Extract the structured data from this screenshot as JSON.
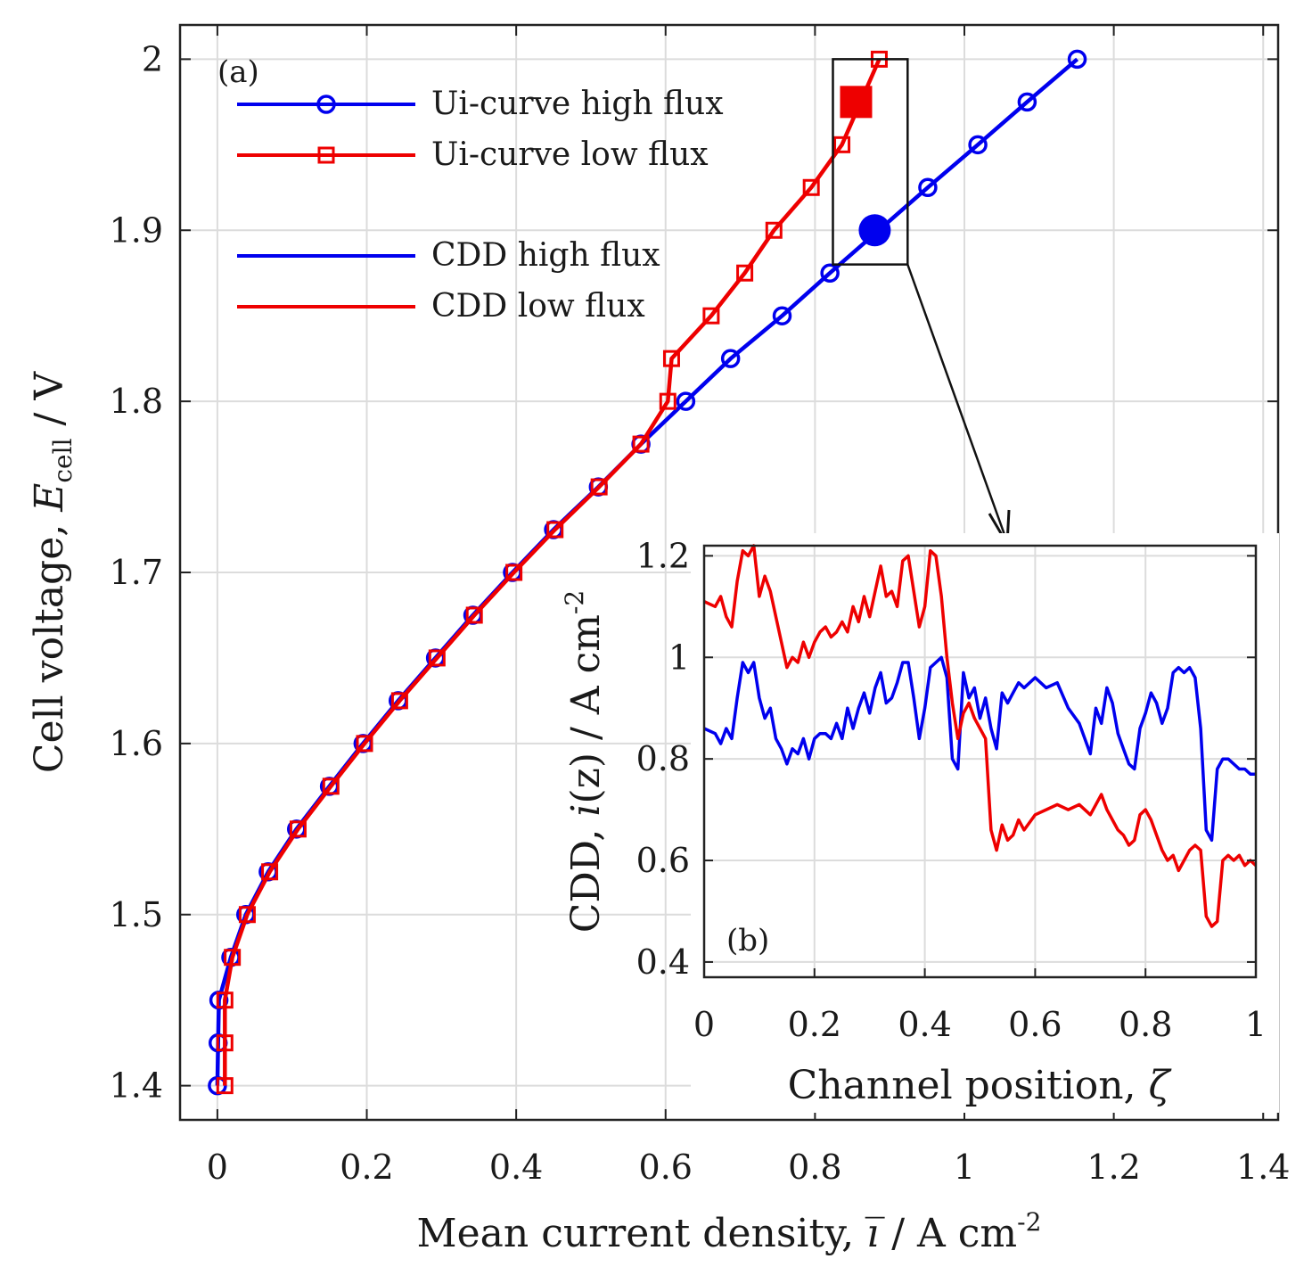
{
  "chart_data": [
    {
      "panel": "(a)",
      "type": "line",
      "xlabel_text": "Mean current density, ",
      "xlabel_symbol": "i̅",
      "xlabel_unit": " / A cm",
      "xlabel_sup": "-2",
      "ylabel_text": "Cell voltage, ",
      "ylabel_symbol": "E",
      "ylabel_sub": "cell",
      "ylabel_unit": " / V",
      "xlim": [
        -0.05,
        1.42
      ],
      "ylim": [
        1.38,
        2.02
      ],
      "xticks": [
        0,
        0.2,
        0.4,
        0.6,
        0.8,
        1,
        1.2,
        1.4
      ],
      "xtick_labels": [
        "0",
        "0.2",
        "0.4",
        "0.6",
        "0.8",
        "1",
        "1.2",
        "1.4"
      ],
      "yticks": [
        1.4,
        1.5,
        1.6,
        1.7,
        1.8,
        1.9,
        2
      ],
      "ytick_labels": [
        "1.4",
        "1.5",
        "1.6",
        "1.7",
        "1.8",
        "1.9",
        "2"
      ],
      "grid": true,
      "legend_position": "top-left",
      "series": [
        {
          "name": "Ui-curve high flux",
          "color": "#0000ee",
          "marker": "circle",
          "x": [
            0.0,
            0.001,
            0.002,
            0.018,
            0.038,
            0.068,
            0.106,
            0.15,
            0.195,
            0.242,
            0.292,
            0.342,
            0.395,
            0.45,
            0.51,
            0.567,
            0.627,
            0.687,
            0.756,
            0.82,
            0.951,
            1.018,
            1.084,
            1.151
          ],
          "y": [
            1.4,
            1.425,
            1.45,
            1.475,
            1.5,
            1.525,
            1.55,
            1.575,
            1.6,
            1.625,
            1.65,
            1.675,
            1.7,
            1.725,
            1.75,
            1.775,
            1.8,
            1.825,
            1.85,
            1.875,
            1.925,
            1.95,
            1.975,
            2.0
          ]
        },
        {
          "name": "Ui-curve low flux",
          "color": "#ee0000",
          "marker": "square",
          "x": [
            0.01,
            0.01,
            0.01,
            0.02,
            0.04,
            0.07,
            0.108,
            0.152,
            0.197,
            0.244,
            0.294,
            0.344,
            0.397,
            0.452,
            0.511,
            0.567,
            0.603,
            0.608,
            0.661,
            0.706,
            0.745,
            0.795,
            0.836,
            0.886
          ],
          "y": [
            1.4,
            1.425,
            1.45,
            1.475,
            1.5,
            1.525,
            1.55,
            1.575,
            1.6,
            1.625,
            1.65,
            1.675,
            1.7,
            1.725,
            1.75,
            1.775,
            1.8,
            1.825,
            1.85,
            1.875,
            1.9,
            1.925,
            1.95,
            2.0
          ]
        },
        {
          "name": "CDD high flux",
          "color": "#0000ee",
          "marker": "none"
        },
        {
          "name": "CDD low flux",
          "color": "#ee0000",
          "marker": "none"
        }
      ],
      "highlight_points": [
        {
          "series": "CDD high flux",
          "x": 0.88,
          "y": 1.9,
          "marker": "filled-circle",
          "color": "#0000ee"
        },
        {
          "series": "CDD low flux",
          "x": 0.855,
          "y": 1.975,
          "marker": "filled-square",
          "color": "#ee0000"
        }
      ],
      "zoom_box": {
        "x": [
          0.824,
          0.924
        ],
        "y": [
          1.88,
          2.0
        ]
      }
    },
    {
      "panel": "(b)",
      "type": "line",
      "xlabel_text": "Channel position, ",
      "xlabel_symbol": "ζ",
      "ylabel_text": "CDD, ",
      "ylabel_symbol": "i",
      "ylabel_arg": "(z)",
      "ylabel_unit": " / A cm",
      "ylabel_sup": "-2",
      "xlim": [
        0,
        1
      ],
      "ylim": [
        0.37,
        1.22
      ],
      "xticks": [
        0,
        0.2,
        0.4,
        0.6,
        0.8,
        1
      ],
      "xtick_labels": [
        "0",
        "0.2",
        "0.4",
        "0.6",
        "0.8",
        "1"
      ],
      "yticks": [
        0.4,
        0.6,
        0.8,
        1,
        1.2
      ],
      "ytick_labels": [
        "0.4",
        "0.6",
        "0.8",
        "1",
        "1.2"
      ],
      "grid": true,
      "series": [
        {
          "name": "CDD high flux",
          "color": "#0000ee",
          "x": [
            0.0,
            0.02,
            0.03,
            0.04,
            0.05,
            0.06,
            0.07,
            0.08,
            0.09,
            0.1,
            0.11,
            0.12,
            0.13,
            0.14,
            0.15,
            0.16,
            0.17,
            0.18,
            0.19,
            0.2,
            0.21,
            0.22,
            0.23,
            0.24,
            0.25,
            0.26,
            0.27,
            0.28,
            0.29,
            0.3,
            0.31,
            0.32,
            0.33,
            0.34,
            0.35,
            0.36,
            0.37,
            0.38,
            0.39,
            0.4,
            0.41,
            0.42,
            0.43,
            0.44,
            0.45,
            0.46,
            0.47,
            0.48,
            0.49,
            0.5,
            0.51,
            0.52,
            0.53,
            0.54,
            0.55,
            0.56,
            0.57,
            0.58,
            0.6,
            0.62,
            0.64,
            0.66,
            0.68,
            0.7,
            0.71,
            0.72,
            0.73,
            0.74,
            0.75,
            0.76,
            0.77,
            0.78,
            0.79,
            0.8,
            0.81,
            0.82,
            0.83,
            0.84,
            0.85,
            0.86,
            0.87,
            0.88,
            0.89,
            0.9,
            0.91,
            0.92,
            0.93,
            0.94,
            0.95,
            0.96,
            0.97,
            0.98,
            0.99,
            1.0
          ],
          "y": [
            0.86,
            0.85,
            0.83,
            0.86,
            0.84,
            0.92,
            0.99,
            0.97,
            0.99,
            0.92,
            0.88,
            0.9,
            0.84,
            0.82,
            0.79,
            0.82,
            0.81,
            0.84,
            0.8,
            0.84,
            0.85,
            0.85,
            0.84,
            0.87,
            0.84,
            0.9,
            0.86,
            0.9,
            0.93,
            0.89,
            0.94,
            0.97,
            0.91,
            0.92,
            0.95,
            0.99,
            0.99,
            0.92,
            0.84,
            0.9,
            0.98,
            0.99,
            1.0,
            0.96,
            0.8,
            0.78,
            0.97,
            0.92,
            0.94,
            0.88,
            0.92,
            0.86,
            0.82,
            0.93,
            0.91,
            0.93,
            0.95,
            0.94,
            0.96,
            0.94,
            0.95,
            0.9,
            0.87,
            0.81,
            0.9,
            0.87,
            0.94,
            0.91,
            0.85,
            0.82,
            0.79,
            0.78,
            0.86,
            0.89,
            0.93,
            0.91,
            0.87,
            0.9,
            0.97,
            0.98,
            0.97,
            0.98,
            0.96,
            0.86,
            0.66,
            0.64,
            0.78,
            0.8,
            0.8,
            0.79,
            0.78,
            0.78,
            0.77,
            0.77
          ]
        },
        {
          "name": "CDD low flux",
          "color": "#ee0000",
          "x": [
            0.0,
            0.02,
            0.03,
            0.04,
            0.05,
            0.06,
            0.07,
            0.08,
            0.09,
            0.1,
            0.11,
            0.12,
            0.13,
            0.14,
            0.15,
            0.16,
            0.17,
            0.18,
            0.19,
            0.2,
            0.21,
            0.22,
            0.23,
            0.24,
            0.25,
            0.26,
            0.27,
            0.28,
            0.29,
            0.3,
            0.31,
            0.32,
            0.33,
            0.34,
            0.35,
            0.36,
            0.37,
            0.38,
            0.39,
            0.4,
            0.41,
            0.42,
            0.43,
            0.44,
            0.45,
            0.46,
            0.47,
            0.48,
            0.49,
            0.5,
            0.51,
            0.52,
            0.53,
            0.54,
            0.55,
            0.56,
            0.57,
            0.58,
            0.6,
            0.62,
            0.64,
            0.66,
            0.68,
            0.7,
            0.71,
            0.72,
            0.73,
            0.74,
            0.75,
            0.76,
            0.77,
            0.78,
            0.79,
            0.8,
            0.81,
            0.82,
            0.83,
            0.84,
            0.85,
            0.86,
            0.87,
            0.88,
            0.89,
            0.9,
            0.91,
            0.92,
            0.93,
            0.94,
            0.95,
            0.96,
            0.97,
            0.98,
            0.99,
            1.0
          ],
          "y": [
            1.11,
            1.1,
            1.12,
            1.08,
            1.06,
            1.15,
            1.21,
            1.2,
            1.22,
            1.12,
            1.16,
            1.13,
            1.08,
            1.03,
            0.98,
            1.0,
            0.99,
            1.03,
            1.0,
            1.03,
            1.05,
            1.06,
            1.04,
            1.05,
            1.07,
            1.05,
            1.1,
            1.07,
            1.12,
            1.08,
            1.13,
            1.18,
            1.12,
            1.13,
            1.1,
            1.19,
            1.2,
            1.13,
            1.06,
            1.1,
            1.21,
            1.2,
            1.12,
            1.0,
            0.91,
            0.84,
            0.89,
            0.91,
            0.88,
            0.86,
            0.84,
            0.66,
            0.62,
            0.67,
            0.64,
            0.65,
            0.68,
            0.66,
            0.69,
            0.7,
            0.71,
            0.7,
            0.71,
            0.69,
            0.71,
            0.73,
            0.7,
            0.68,
            0.66,
            0.65,
            0.63,
            0.64,
            0.69,
            0.7,
            0.68,
            0.65,
            0.62,
            0.6,
            0.61,
            0.58,
            0.6,
            0.62,
            0.63,
            0.62,
            0.49,
            0.47,
            0.48,
            0.6,
            0.61,
            0.6,
            0.61,
            0.59,
            0.6,
            0.59
          ]
        }
      ]
    }
  ]
}
